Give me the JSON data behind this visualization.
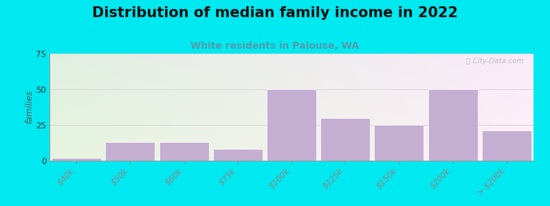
{
  "title": "Distribution of median family income in 2022",
  "subtitle": "White residents in Palouse, WA",
  "ylabel": "families",
  "categories": [
    "$40k",
    "$50k",
    "$60k",
    "$75k",
    "$100k",
    "$125k",
    "$150k",
    "$200k",
    "> $200k"
  ],
  "values": [
    2,
    13,
    13,
    8,
    50,
    30,
    25,
    50,
    21
  ],
  "bar_color": "#c4aed2",
  "ylim": [
    0,
    75
  ],
  "yticks": [
    0,
    25,
    50,
    75
  ],
  "background_outer": "#00e8f0",
  "title_fontsize": 15,
  "subtitle_fontsize": 10,
  "subtitle_color": "#5599aa",
  "ylabel_fontsize": 9,
  "watermark_text": "ⓘ City-Data.com",
  "grid_color": "#d0d0d0",
  "bar_width": 0.92
}
